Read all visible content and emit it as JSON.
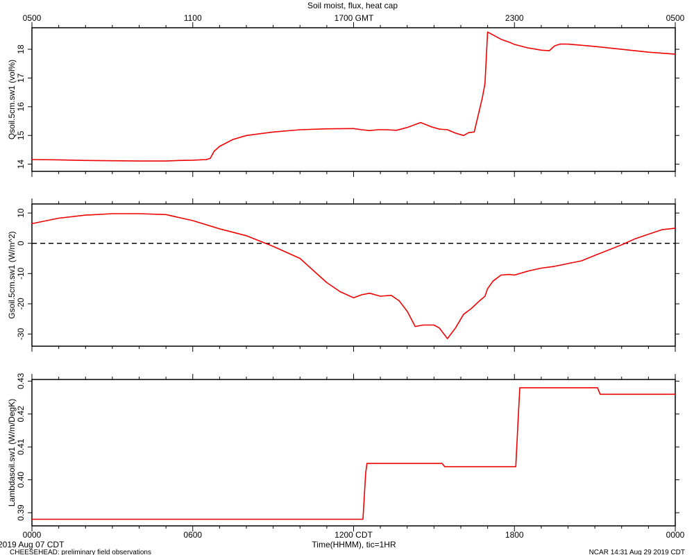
{
  "title": "Soil moist, flux, heat cap",
  "top_axis": {
    "label": "1700 GMT",
    "ticks": [
      {
        "label": "0500",
        "hour": 0
      },
      {
        "label": "1100",
        "hour": 6
      },
      {
        "label": "",
        "hour": 12
      },
      {
        "label": "2300",
        "hour": 18
      },
      {
        "label": "0500",
        "hour": 24
      }
    ]
  },
  "bottom_axis": {
    "label": "Time(HHMM), tic=1HR",
    "ticks": [
      {
        "label": "0000",
        "hour": 0
      },
      {
        "label": "0600",
        "hour": 6
      },
      {
        "label": "1200 CDT",
        "hour": 12
      },
      {
        "label": "1800",
        "hour": 18
      },
      {
        "label": "0000",
        "hour": 24
      }
    ]
  },
  "footer": {
    "date": "2019 Aug 07 CDT",
    "left_note": "CHEESEHEAD: preliminary field observations",
    "right_note": "NCAR 14:31 Aug 29 2019 CDT"
  },
  "colors": {
    "line": "#ee0000",
    "axis": "#000000",
    "zero_line": "#000000"
  },
  "chart_data": [
    {
      "type": "line",
      "ylabel": "Qsoil.5cm.sw1 (vol%)",
      "ylim": [
        13.75,
        18.75
      ],
      "yticks": [
        14,
        15,
        16,
        17,
        18
      ],
      "x_unit": "hour CDT",
      "x": [
        0,
        1,
        2,
        3,
        4,
        4.5,
        5,
        5.5,
        6,
        6.5,
        6.65,
        6.8,
        7,
        7.5,
        8,
        9,
        10,
        11,
        12,
        12.3,
        12.6,
        12.9,
        13.2,
        13.6,
        14,
        14.5,
        14.9,
        15.2,
        15.5,
        15.8,
        16.1,
        16.3,
        16.5,
        16.8,
        16.9,
        17,
        17.1,
        17.2,
        17.3,
        17.5,
        17.8,
        18,
        18.5,
        19,
        19.3,
        19.5,
        19.7,
        20,
        21,
        22,
        23,
        24
      ],
      "y": [
        14.16,
        14.15,
        14.13,
        14.12,
        14.11,
        14.11,
        14.11,
        14.13,
        14.14,
        14.16,
        14.2,
        14.45,
        14.62,
        14.86,
        15.0,
        15.12,
        15.2,
        15.23,
        15.24,
        15.2,
        15.17,
        15.2,
        15.2,
        15.18,
        15.28,
        15.45,
        15.3,
        15.22,
        15.2,
        15.08,
        15.0,
        15.1,
        15.12,
        16.3,
        16.8,
        18.6,
        18.55,
        18.5,
        18.45,
        18.35,
        18.25,
        18.17,
        18.05,
        17.97,
        17.95,
        18.12,
        18.18,
        18.18,
        18.1,
        18.0,
        17.9,
        17.83
      ]
    },
    {
      "type": "line",
      "ylabel": "Gsoil.5cm.sw1 (W/m^2)",
      "ylim": [
        -34,
        13
      ],
      "yticks": [
        -30,
        -20,
        -10,
        0,
        10
      ],
      "reference_line": 0,
      "x_unit": "hour CDT",
      "x": [
        0,
        1,
        2,
        3,
        4,
        5,
        6,
        7,
        8,
        9,
        10,
        10.5,
        11,
        11.5,
        12,
        12.3,
        12.6,
        13,
        13.4,
        13.7,
        14,
        14.3,
        14.6,
        15,
        15.2,
        15.5,
        15.8,
        16.1,
        16.4,
        16.7,
        16.9,
        17,
        17.2,
        17.5,
        17.8,
        18,
        18.5,
        19,
        19.5,
        20,
        20.5,
        21,
        22,
        22.5,
        23,
        23.5,
        24
      ],
      "y": [
        6.5,
        8.3,
        9.3,
        9.8,
        9.8,
        9.5,
        7.5,
        4.8,
        2.5,
        -1.0,
        -5.0,
        -9.0,
        -13.0,
        -16.0,
        -18.0,
        -17.0,
        -16.5,
        -17.5,
        -17.2,
        -19.0,
        -22.5,
        -27.5,
        -27.0,
        -27.0,
        -28.0,
        -31.5,
        -28.0,
        -23.5,
        -21.5,
        -19.0,
        -17.5,
        -15.0,
        -12.5,
        -10.5,
        -10.3,
        -10.5,
        -9.2,
        -8.2,
        -7.6,
        -6.7,
        -5.8,
        -4.0,
        -0.5,
        1.5,
        3.0,
        4.5,
        5.0
      ]
    },
    {
      "type": "line",
      "ylabel": "Lambdasoil.sw1 (W/m/DegK)",
      "ylim": [
        0.386,
        0.4305
      ],
      "yticks": [
        0.39,
        0.4,
        0.41,
        0.42,
        0.43
      ],
      "x_unit": "hour CDT",
      "x": [
        0,
        12.35,
        12.45,
        12.5,
        15.3,
        15.4,
        18.05,
        18.15,
        18.2,
        21.1,
        21.2,
        24
      ],
      "y": [
        0.388,
        0.388,
        0.402,
        0.405,
        0.405,
        0.404,
        0.404,
        0.42,
        0.428,
        0.428,
        0.426,
        0.426
      ]
    }
  ]
}
